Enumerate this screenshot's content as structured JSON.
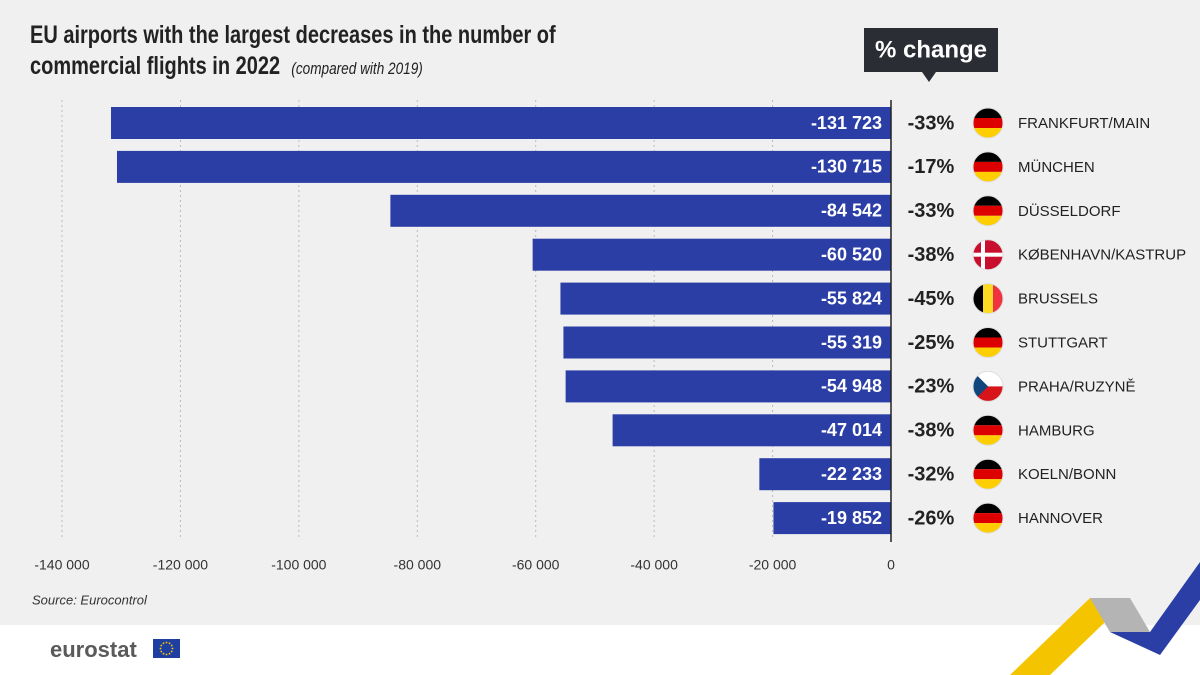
{
  "chart_data": {
    "type": "bar",
    "orientation": "horizontal",
    "title": "EU airports with the largest decreases in the number of commercial flights in 2022",
    "subtitle": "(compared with 2019)",
    "categories": [
      "FRANKFURT/MAIN",
      "MÜNCHEN",
      "DÜSSELDORF",
      "KØBENHAVN/KASTRUP",
      "BRUSSELS",
      "STUTTGART",
      "PRAHA/RUZYNĚ",
      "HAMBURG",
      "KOELN/BONN",
      "HANNOVER"
    ],
    "values": [
      -131723,
      -130715,
      -84542,
      -60520,
      -55824,
      -55319,
      -54948,
      -47014,
      -22233,
      -19852
    ],
    "value_labels": [
      "-131 723",
      "-130 715",
      "-84 542",
      "-60 520",
      "-55 824",
      "-55 319",
      "-54 948",
      "-47 014",
      "-22 233",
      "-19 852"
    ],
    "color": "#2b3ea6",
    "pct_change": {
      "title": "% change",
      "values": [
        -33,
        -17,
        -33,
        -38,
        -45,
        -25,
        -23,
        -38,
        -32,
        -26
      ],
      "value_labels": [
        "-33%",
        "-17%",
        "-33%",
        "-38%",
        "-45%",
        "-25%",
        "-23%",
        "-38%",
        "-32%",
        "-26%"
      ]
    },
    "xlim": [
      -140000,
      0
    ],
    "xticks": [
      {
        "value": -140000,
        "label": "-140 000"
      },
      {
        "value": -120000,
        "label": "-120 000"
      },
      {
        "value": -100000,
        "label": "-100 000"
      },
      {
        "value": -80000,
        "label": "-80 000"
      },
      {
        "value": -60000,
        "label": "-60 000"
      },
      {
        "value": -40000,
        "label": "-40 000"
      },
      {
        "value": -20000,
        "label": "-20 000"
      },
      0
    ],
    "grid": true,
    "source": "Source: Eurocontrol",
    "logo": "eurostat"
  }
}
